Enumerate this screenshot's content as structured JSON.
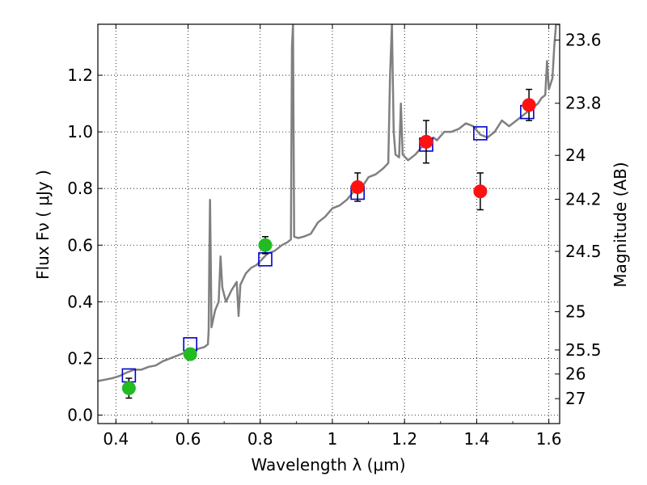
{
  "chart_data": {
    "type": "scatter",
    "xlabel": "Wavelength  λ (μm)",
    "ylabel": "Flux  Fν  ( μJy )",
    "ylabel_right": "Magnitude (AB)",
    "xlim": [
      0.35,
      1.63
    ],
    "ylim": [
      -0.03,
      1.38
    ],
    "grid": true,
    "x_ticks": [
      0.4,
      0.6,
      0.8,
      1.0,
      1.2,
      1.4,
      1.6
    ],
    "x_tick_labels": [
      "0.4",
      "0.6",
      "0.8",
      "1",
      "1.2",
      "1.4",
      "1.6"
    ],
    "y_ticks": [
      0.0,
      0.2,
      0.4,
      0.6,
      0.8,
      1.0,
      1.2
    ],
    "y_tick_labels": [
      "0.0",
      "0.2",
      "0.4",
      "0.6",
      "0.8",
      "1.0",
      "1.2"
    ],
    "right_ticks": [
      {
        "label": "23.6",
        "flux": 1.324
      },
      {
        "label": "23.8",
        "flux": 1.101
      },
      {
        "label": "24",
        "flux": 0.917
      },
      {
        "label": "24.2",
        "flux": 0.762
      },
      {
        "label": "24.5",
        "flux": 0.578
      },
      {
        "label": "25",
        "flux": 0.365
      },
      {
        "label": "25.5",
        "flux": 0.23
      },
      {
        "label": "26",
        "flux": 0.145
      },
      {
        "label": "27",
        "flux": 0.058
      }
    ],
    "series": [
      {
        "name": "model spectrum",
        "kind": "line",
        "color": "#808080",
        "points": [
          [
            0.35,
            0.12
          ],
          [
            0.37,
            0.125
          ],
          [
            0.39,
            0.13
          ],
          [
            0.41,
            0.138
          ],
          [
            0.43,
            0.15
          ],
          [
            0.45,
            0.16
          ],
          [
            0.47,
            0.16
          ],
          [
            0.49,
            0.17
          ],
          [
            0.51,
            0.175
          ],
          [
            0.53,
            0.19
          ],
          [
            0.55,
            0.2
          ],
          [
            0.57,
            0.21
          ],
          [
            0.59,
            0.22
          ],
          [
            0.61,
            0.225
          ],
          [
            0.63,
            0.235
          ],
          [
            0.645,
            0.24
          ],
          [
            0.655,
            0.25
          ],
          [
            0.657,
            0.3
          ],
          [
            0.659,
            0.55
          ],
          [
            0.661,
            0.76
          ],
          [
            0.663,
            0.55
          ],
          [
            0.665,
            0.31
          ],
          [
            0.675,
            0.37
          ],
          [
            0.685,
            0.4
          ],
          [
            0.69,
            0.56
          ],
          [
            0.695,
            0.45
          ],
          [
            0.705,
            0.4
          ],
          [
            0.72,
            0.44
          ],
          [
            0.735,
            0.47
          ],
          [
            0.74,
            0.35
          ],
          [
            0.745,
            0.46
          ],
          [
            0.76,
            0.5
          ],
          [
            0.775,
            0.52
          ],
          [
            0.79,
            0.53
          ],
          [
            0.805,
            0.55
          ],
          [
            0.82,
            0.57
          ],
          [
            0.84,
            0.58
          ],
          [
            0.86,
            0.6
          ],
          [
            0.875,
            0.61
          ],
          [
            0.885,
            0.62
          ],
          [
            0.888,
            1.3
          ],
          [
            0.891,
            1.38
          ],
          [
            0.894,
            0.63
          ],
          [
            0.905,
            0.625
          ],
          [
            0.92,
            0.63
          ],
          [
            0.94,
            0.64
          ],
          [
            0.96,
            0.68
          ],
          [
            0.98,
            0.7
          ],
          [
            1.0,
            0.73
          ],
          [
            1.02,
            0.74
          ],
          [
            1.04,
            0.76
          ],
          [
            1.06,
            0.79
          ],
          [
            1.08,
            0.8
          ],
          [
            1.1,
            0.84
          ],
          [
            1.12,
            0.85
          ],
          [
            1.14,
            0.87
          ],
          [
            1.155,
            0.89
          ],
          [
            1.16,
            1.2
          ],
          [
            1.165,
            1.38
          ],
          [
            1.17,
            1.0
          ],
          [
            1.175,
            0.92
          ],
          [
            1.185,
            0.91
          ],
          [
            1.19,
            1.1
          ],
          [
            1.195,
            0.92
          ],
          [
            1.21,
            0.9
          ],
          [
            1.23,
            0.92
          ],
          [
            1.25,
            0.95
          ],
          [
            1.27,
            0.96
          ],
          [
            1.28,
            0.98
          ],
          [
            1.29,
            0.97
          ],
          [
            1.31,
            1.0
          ],
          [
            1.33,
            1.0
          ],
          [
            1.35,
            1.01
          ],
          [
            1.37,
            1.03
          ],
          [
            1.39,
            1.02
          ],
          [
            1.41,
            0.99
          ],
          [
            1.43,
            0.98
          ],
          [
            1.45,
            1.0
          ],
          [
            1.47,
            1.04
          ],
          [
            1.49,
            1.02
          ],
          [
            1.51,
            1.04
          ],
          [
            1.53,
            1.06
          ],
          [
            1.55,
            1.08
          ],
          [
            1.57,
            1.1
          ],
          [
            1.58,
            1.12
          ],
          [
            1.59,
            1.13
          ],
          [
            1.595,
            1.25
          ],
          [
            1.6,
            1.15
          ],
          [
            1.61,
            1.19
          ],
          [
            1.615,
            1.3
          ],
          [
            1.62,
            1.38
          ],
          [
            1.63,
            1.38
          ]
        ]
      },
      {
        "name": "model photometry",
        "kind": "open-square",
        "color": "#0000cc",
        "x": [
          0.436,
          0.606,
          0.814,
          1.07,
          1.26,
          1.41,
          1.54
        ],
        "y": [
          0.14,
          0.25,
          0.55,
          0.785,
          0.955,
          0.995,
          1.07
        ]
      },
      {
        "name": "observed (optical)",
        "kind": "filled-circle",
        "color": "#22bb22",
        "x": [
          0.436,
          0.606,
          0.814
        ],
        "y": [
          0.095,
          0.215,
          0.6
        ],
        "yerr": [
          0.035,
          0.02,
          0.03
        ]
      },
      {
        "name": "observed (near-IR)",
        "kind": "filled-circle",
        "color": "#ff1111",
        "x": [
          1.07,
          1.26,
          1.41,
          1.545
        ],
        "y": [
          0.805,
          0.965,
          0.79,
          1.095
        ],
        "yerr": [
          0.05,
          0.075,
          0.065,
          0.055
        ]
      }
    ]
  }
}
